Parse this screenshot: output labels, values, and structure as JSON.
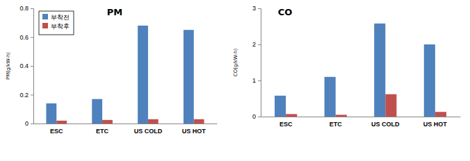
{
  "chart_data": [
    {
      "type": "bar",
      "title": "PM",
      "y_label": "PM(g/kW-h)",
      "categories": [
        "ESC",
        "ETC",
        "US COLD",
        "US HOT"
      ],
      "series": [
        {
          "name": "부착전",
          "color": "#4f81bd",
          "values": [
            0.14,
            0.17,
            0.68,
            0.65
          ]
        },
        {
          "name": "부착후",
          "color": "#c0504d",
          "values": [
            0.02,
            0.025,
            0.03,
            0.03
          ]
        }
      ],
      "ylim": [
        0,
        0.8
      ],
      "yticks": [
        0,
        0.2,
        0.4,
        0.6,
        0.8
      ],
      "legend": "upper left",
      "grid": false
    },
    {
      "type": "bar",
      "title": "CO",
      "y_label": "CO(g/kW-h)",
      "categories": [
        "ESC",
        "ETC",
        "US COLD",
        "US HOT"
      ],
      "series": [
        {
          "color": "#4f81bd",
          "values": [
            0.58,
            1.1,
            2.58,
            2.0
          ]
        },
        {
          "color": "#c0504d",
          "values": [
            0.07,
            0.05,
            0.62,
            0.13
          ]
        }
      ],
      "ylim": [
        0,
        3
      ],
      "yticks": [
        0,
        1,
        2,
        3
      ],
      "grid": false
    }
  ]
}
